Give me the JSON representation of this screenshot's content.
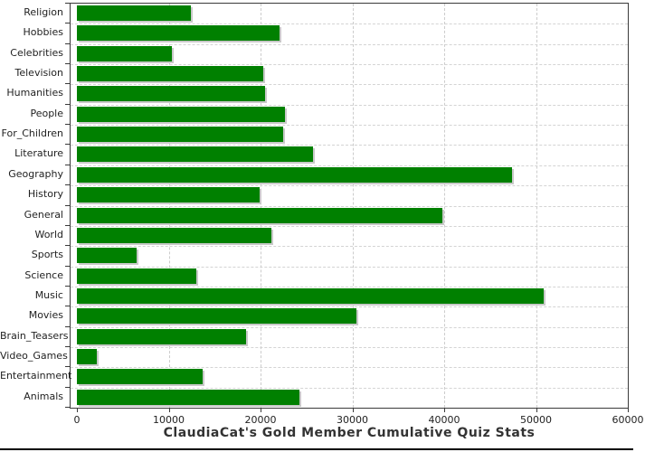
{
  "chart_data": {
    "type": "bar",
    "orientation": "horizontal",
    "title": "ClaudiaCat's Gold Member Cumulative Quiz Stats",
    "categories": [
      "Religion",
      "Hobbies",
      "Celebrities",
      "Television",
      "Humanities",
      "People",
      "For_Children",
      "Literature",
      "Geography",
      "History",
      "General",
      "World",
      "Sports",
      "Science",
      "Music",
      "Movies",
      "Brain_Teasers",
      "Video_Games",
      "Entertainment",
      "Animals"
    ],
    "values": [
      12400,
      22100,
      10300,
      20300,
      20500,
      22700,
      22500,
      25700,
      47400,
      19900,
      39800,
      21200,
      6500,
      13000,
      50800,
      30400,
      18400,
      2200,
      13700,
      24200
    ],
    "xlabel": "",
    "ylabel": "",
    "xlim": [
      0,
      60000
    ],
    "x_tick_values": [
      0,
      10000,
      20000,
      30000,
      40000,
      50000,
      60000
    ],
    "x_tick_labels": [
      "0",
      "10000",
      "20000",
      "30000",
      "40000",
      "50000",
      "60000"
    ],
    "grid": "dashed-both-axes",
    "legend": "none",
    "colors": {
      "bar": "#008000",
      "bar_shadow": "#c9c9c9",
      "grid": "#cccccc",
      "axis": "#3a3a3a",
      "text": "#222222",
      "title": "#333333",
      "background": "#ffffff"
    }
  }
}
